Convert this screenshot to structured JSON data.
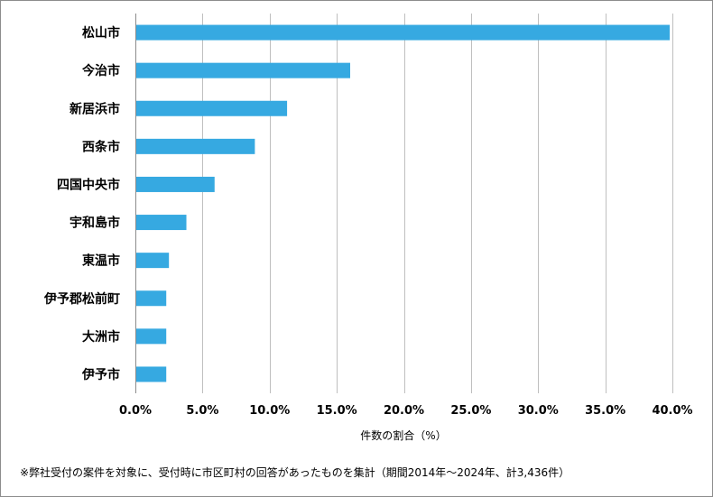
{
  "chart_data": {
    "type": "bar",
    "orientation": "horizontal",
    "categories": [
      "松山市",
      "今治市",
      "新居浜市",
      "西条市",
      "四国中央市",
      "宇和島市",
      "東温市",
      "伊予郡松前町",
      "大洲市",
      "伊予市"
    ],
    "values": [
      39.8,
      16.0,
      11.3,
      8.9,
      5.9,
      3.8,
      2.5,
      2.3,
      2.3,
      2.3
    ],
    "xlim": [
      0,
      40
    ],
    "xticks": [
      0,
      5,
      10,
      15,
      20,
      25,
      30,
      35,
      40
    ],
    "xtick_labels": [
      "0.0%",
      "5.0%",
      "10.0%",
      "15.0%",
      "20.0%",
      "25.0%",
      "30.0%",
      "35.0%",
      "40.0%"
    ],
    "xlabel": "件数の割合（%）",
    "ylabel": "",
    "title": "",
    "grid": "vertical",
    "bar_color": "#36a9e1",
    "grid_color": "#bfbfbf"
  },
  "footnote": "※弊社受付の案件を対象に、受付時に市区町村の回答があったものを集計（期間2014年～2024年、計3,436件）"
}
